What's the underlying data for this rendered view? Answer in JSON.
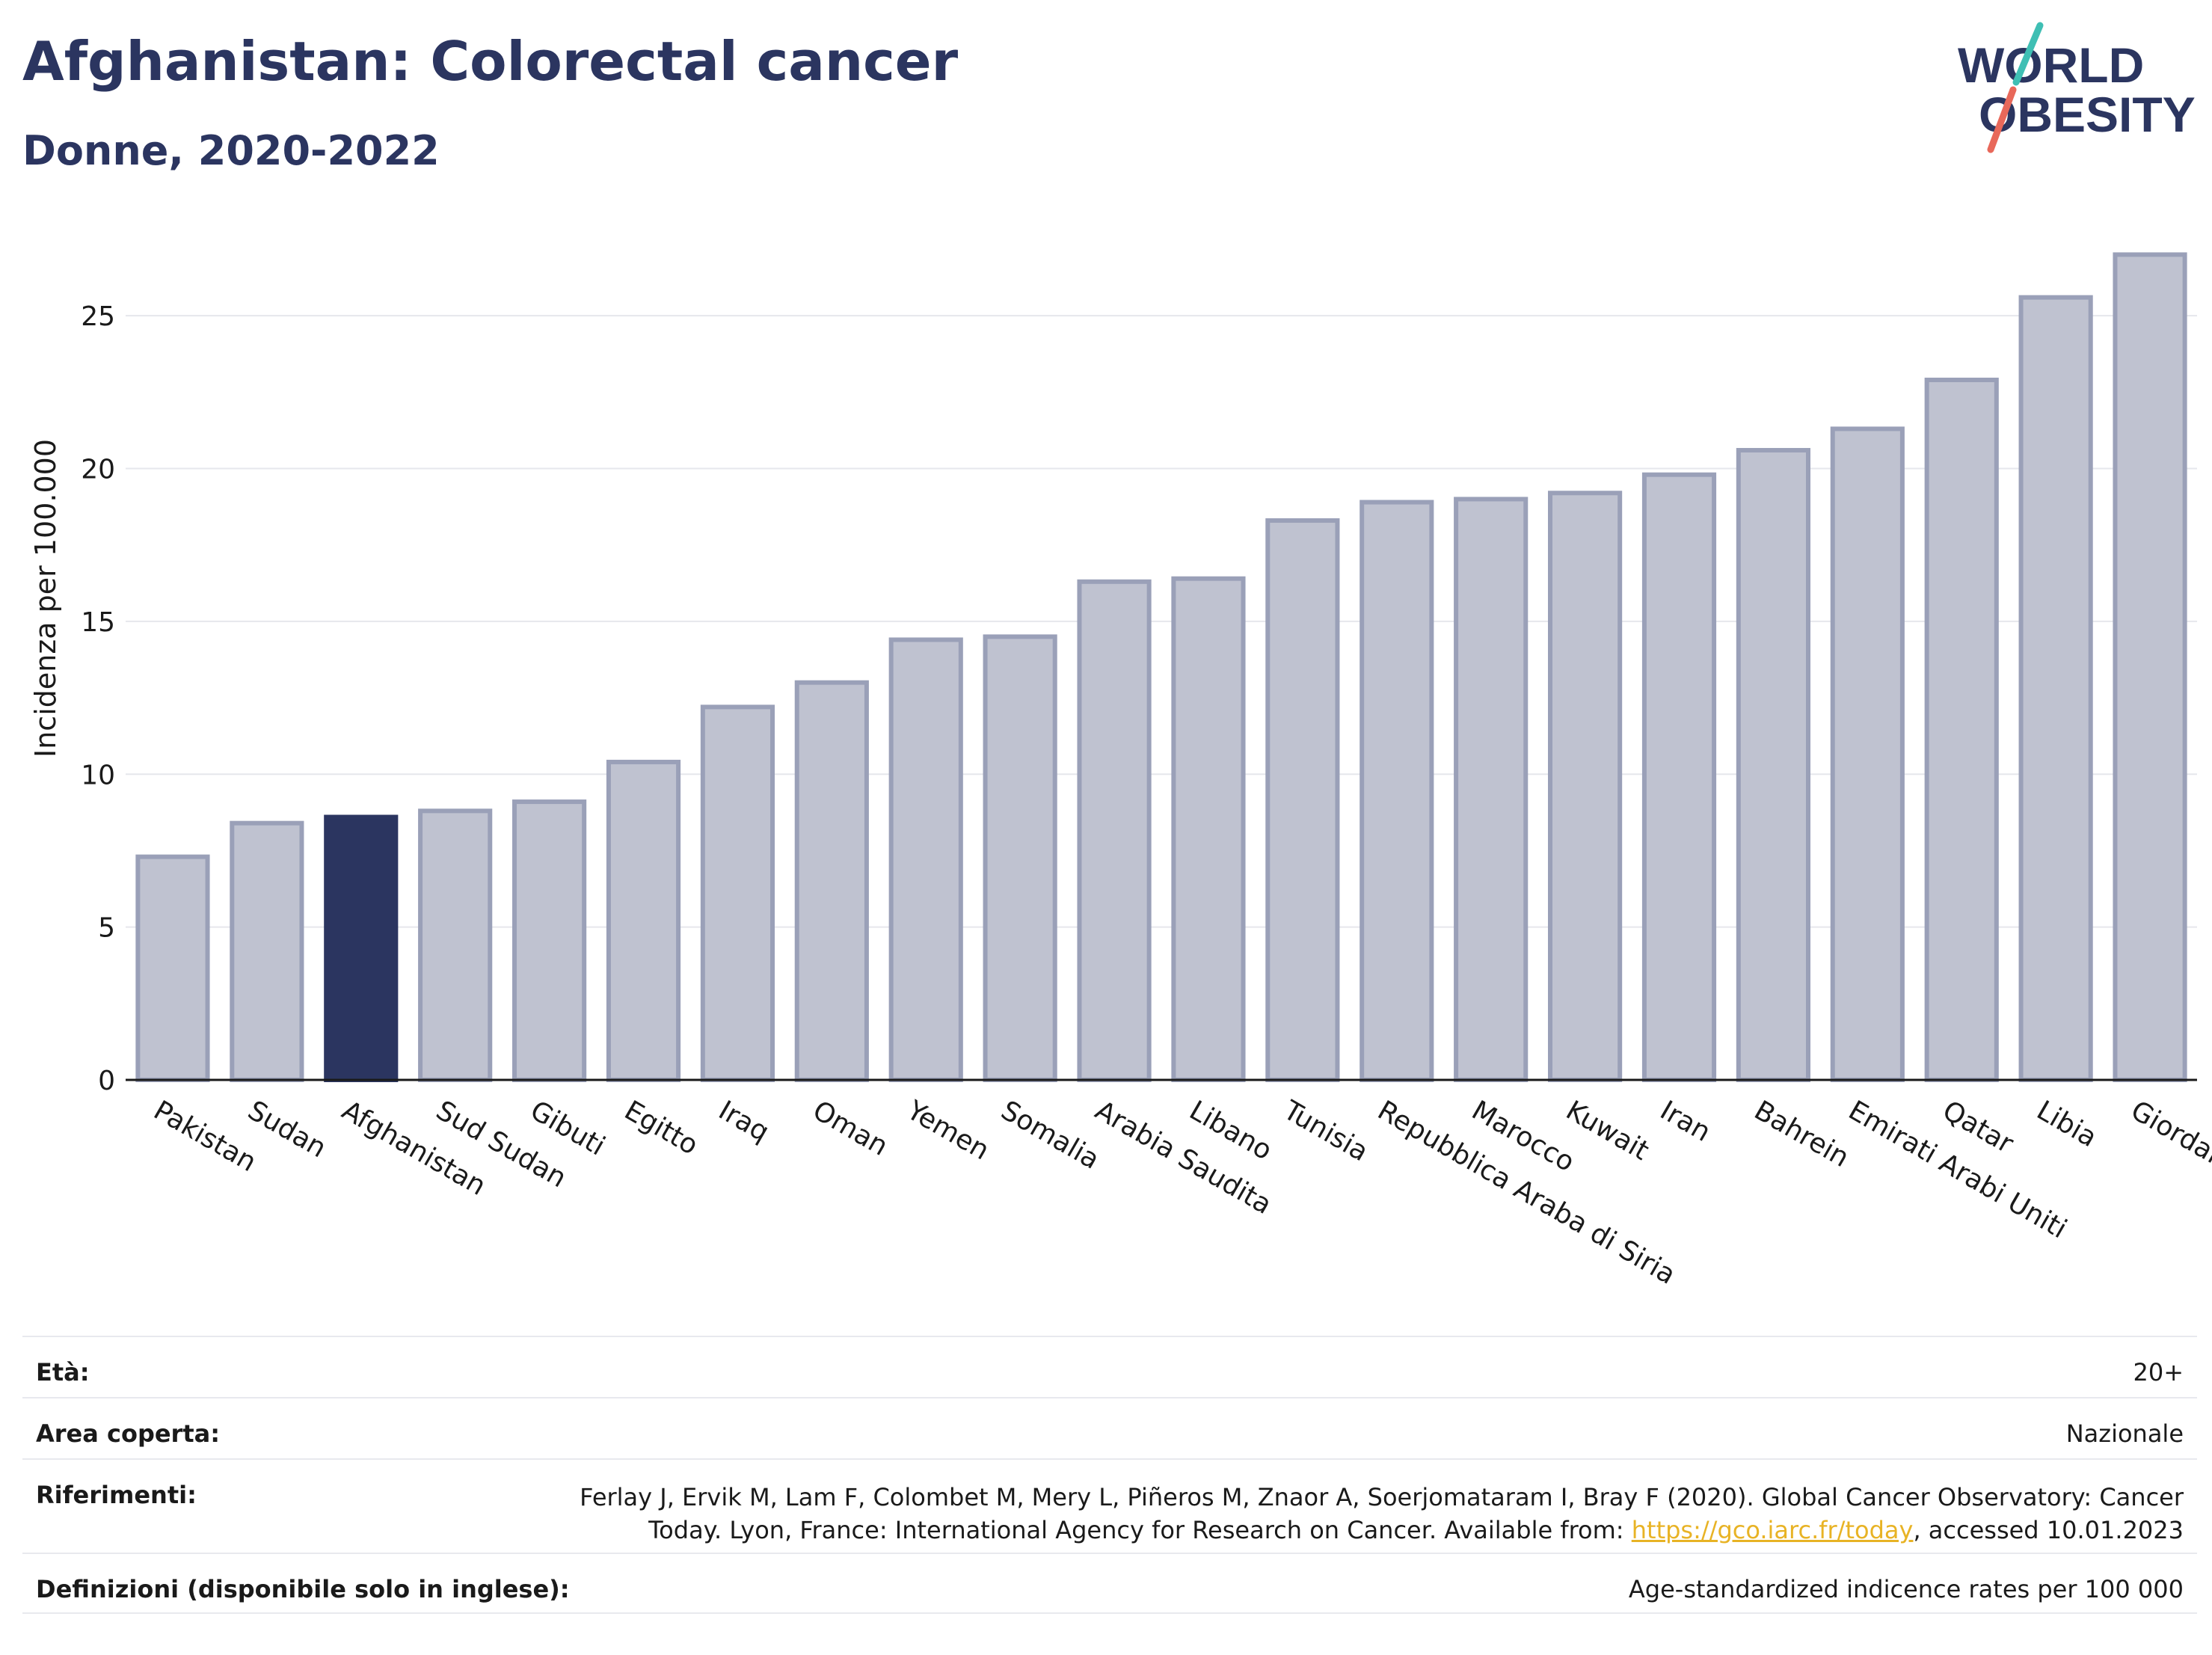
{
  "header": {
    "title": "Afghanistan: Colorectal cancer",
    "subtitle": "Donne, 2020-2022"
  },
  "logo": {
    "line1": "WORLD",
    "line2": "OBESITY",
    "colors": {
      "text": "#2b3560",
      "slash_top": "#3fbfb4",
      "slash_bottom": "#e8685a"
    }
  },
  "chart_data": {
    "type": "bar",
    "ylabel": "Incidenza per 100.000",
    "xlabel": "",
    "ylim": [
      0,
      27.5
    ],
    "yticks": [
      0,
      5,
      10,
      15,
      20,
      25
    ],
    "grid": true,
    "categories": [
      "Pakistan",
      "Sudan",
      "Afghanistan",
      "Sud Sudan",
      "Gibuti",
      "Egitto",
      "Iraq",
      "Oman",
      "Yemen",
      "Somalia",
      "Arabia Saudita",
      "Libano",
      "Tunisia",
      "Repubblica Araba di Siria",
      "Marocco",
      "Kuwait",
      "Iran",
      "Bahrein",
      "Emirati Arabi Uniti",
      "Qatar",
      "Libia",
      "Giordania"
    ],
    "values": [
      7.3,
      8.4,
      8.6,
      8.8,
      9.1,
      10.4,
      12.2,
      13.0,
      14.4,
      14.5,
      16.3,
      16.4,
      18.3,
      18.9,
      19.0,
      19.2,
      19.8,
      20.6,
      21.3,
      22.9,
      25.6,
      27.0
    ],
    "highlight": "Afghanistan",
    "colors": {
      "bar": "#bfc2d0",
      "bar_border": "#9aa0b8",
      "highlight": "#2b3560",
      "grid": "#e6e7ec",
      "axis": "#1a1a1a"
    }
  },
  "meta": {
    "age_label": "Età:",
    "age_value": "20+",
    "area_label": "Area coperta:",
    "area_value": "Nazionale",
    "ref_label": "Riferimenti:",
    "ref_text_1": "Ferlay J, Ervik M, Lam F, Colombet M, Mery L, Piñeros M, Znaor A, Soerjomataram I, Bray F (2020). Global Cancer Observatory: Cancer Today. Lyon, France: International Agency for Research on Cancer. Available from: ",
    "ref_link": "https://gco.iarc.fr/today",
    "ref_text_2": ", accessed 10.01.2023",
    "def_label": "Definizioni (disponibile solo in inglese):",
    "def_value": "Age-standardized indicence rates per 100 000"
  }
}
